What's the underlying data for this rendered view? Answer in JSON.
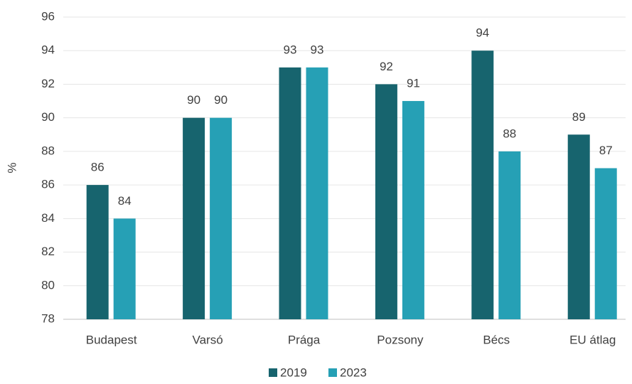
{
  "chart_data": {
    "type": "bar",
    "y_label": "%",
    "categories": [
      "Budapest",
      "Varsó",
      "Prága",
      "Pozsony",
      "Bécs",
      "EU átlag"
    ],
    "series": [
      {
        "name": "2019",
        "color": "#17646e",
        "values": [
          86,
          90,
          93,
          92,
          94,
          89
        ]
      },
      {
        "name": "2023",
        "color": "#26a0b5",
        "values": [
          84,
          90,
          93,
          91,
          88,
          87
        ]
      }
    ],
    "ylim": [
      78,
      96
    ],
    "yticks": [
      78,
      80,
      82,
      84,
      86,
      88,
      90,
      92,
      94,
      96
    ],
    "grid": true,
    "legend": "bottom"
  }
}
